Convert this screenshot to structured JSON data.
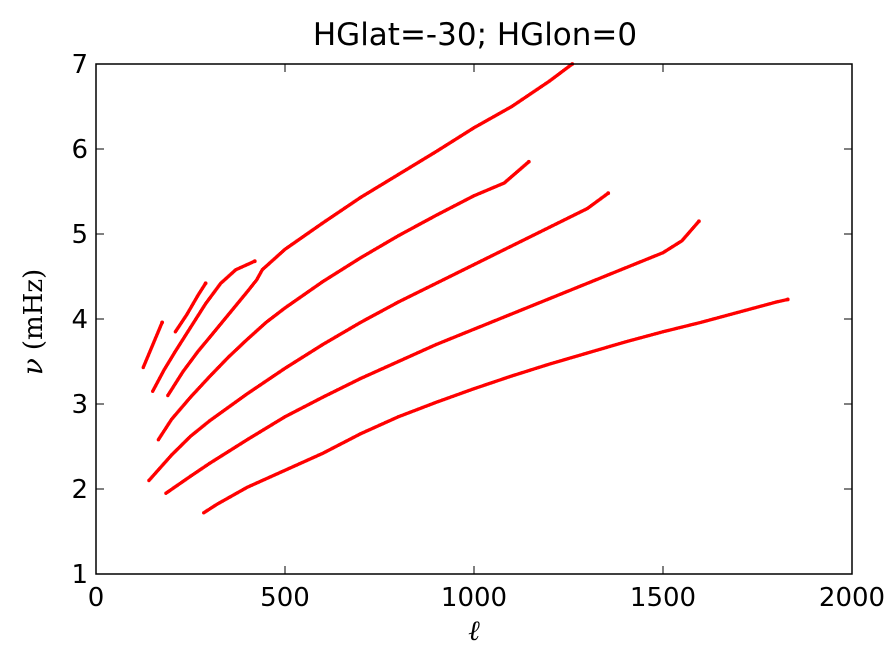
{
  "chart_data": {
    "type": "scatter",
    "title": "HGlat=-30; HGlon=0",
    "xlabel": "ℓ",
    "ylabel": "ν",
    "ylabel_unit": "(mHz)",
    "xlim": [
      0,
      2000
    ],
    "ylim": [
      1,
      7
    ],
    "xticks": [
      "0",
      "500",
      "1000",
      "1500",
      "2000"
    ],
    "yticks": [
      "1",
      "2",
      "3",
      "4",
      "5",
      "6",
      "7"
    ],
    "grid": false,
    "legend": "none",
    "marker_color": "#ff0000",
    "series": [
      {
        "points": [
          [
            285,
            1.72
          ],
          [
            320,
            1.82
          ],
          [
            400,
            2.02
          ],
          [
            500,
            2.22
          ],
          [
            600,
            2.42
          ],
          [
            700,
            2.65
          ],
          [
            800,
            2.85
          ],
          [
            900,
            3.02
          ],
          [
            1000,
            3.18
          ],
          [
            1100,
            3.33
          ],
          [
            1200,
            3.47
          ],
          [
            1300,
            3.6
          ],
          [
            1400,
            3.73
          ],
          [
            1500,
            3.85
          ],
          [
            1600,
            3.96
          ],
          [
            1700,
            4.08
          ],
          [
            1800,
            4.2
          ],
          [
            1830,
            4.23
          ]
        ]
      },
      {
        "points": [
          [
            185,
            1.95
          ],
          [
            250,
            2.15
          ],
          [
            300,
            2.3
          ],
          [
            400,
            2.58
          ],
          [
            500,
            2.85
          ],
          [
            600,
            3.08
          ],
          [
            700,
            3.3
          ],
          [
            800,
            3.5
          ],
          [
            900,
            3.7
          ],
          [
            1000,
            3.88
          ],
          [
            1100,
            4.06
          ],
          [
            1200,
            4.24
          ],
          [
            1300,
            4.42
          ],
          [
            1400,
            4.6
          ],
          [
            1500,
            4.78
          ],
          [
            1550,
            4.92
          ],
          [
            1595,
            5.15
          ]
        ]
      },
      {
        "points": [
          [
            140,
            2.1
          ],
          [
            200,
            2.4
          ],
          [
            250,
            2.62
          ],
          [
            300,
            2.8
          ],
          [
            400,
            3.12
          ],
          [
            500,
            3.42
          ],
          [
            600,
            3.7
          ],
          [
            700,
            3.96
          ],
          [
            800,
            4.2
          ],
          [
            900,
            4.42
          ],
          [
            1000,
            4.64
          ],
          [
            1100,
            4.86
          ],
          [
            1200,
            5.08
          ],
          [
            1300,
            5.3
          ],
          [
            1355,
            5.48
          ]
        ]
      },
      {
        "points": [
          [
            165,
            2.58
          ],
          [
            200,
            2.82
          ],
          [
            250,
            3.08
          ],
          [
            300,
            3.32
          ],
          [
            350,
            3.55
          ],
          [
            400,
            3.76
          ],
          [
            450,
            3.96
          ],
          [
            500,
            4.13
          ],
          [
            600,
            4.44
          ],
          [
            700,
            4.72
          ],
          [
            800,
            4.98
          ],
          [
            900,
            5.22
          ],
          [
            1000,
            5.45
          ],
          [
            1080,
            5.6
          ],
          [
            1145,
            5.85
          ]
        ]
      },
      {
        "points": [
          [
            190,
            3.1
          ],
          [
            230,
            3.38
          ],
          [
            270,
            3.62
          ],
          [
            300,
            3.78
          ],
          [
            350,
            4.05
          ],
          [
            400,
            4.32
          ],
          [
            425,
            4.46
          ],
          [
            440,
            4.58
          ],
          [
            500,
            4.82
          ],
          [
            600,
            5.13
          ],
          [
            700,
            5.43
          ],
          [
            800,
            5.7
          ],
          [
            900,
            5.97
          ],
          [
            1000,
            6.25
          ],
          [
            1100,
            6.5
          ],
          [
            1200,
            6.8
          ],
          [
            1260,
            7.0
          ]
        ]
      },
      {
        "points": [
          [
            150,
            3.15
          ],
          [
            180,
            3.4
          ],
          [
            210,
            3.62
          ],
          [
            250,
            3.9
          ],
          [
            290,
            4.18
          ],
          [
            330,
            4.42
          ],
          [
            370,
            4.58
          ],
          [
            420,
            4.68
          ]
        ]
      },
      {
        "points": [
          [
            210,
            3.85
          ],
          [
            240,
            4.05
          ],
          [
            270,
            4.28
          ],
          [
            290,
            4.42
          ]
        ]
      },
      {
        "points": [
          [
            125,
            3.43
          ],
          [
            175,
            3.96
          ]
        ]
      }
    ]
  }
}
